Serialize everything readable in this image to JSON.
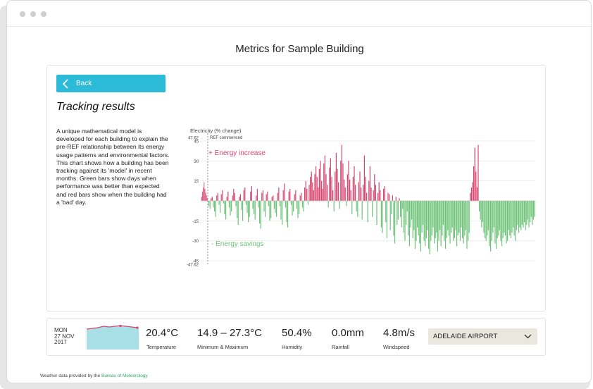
{
  "page_title": "Metrics for Sample Building",
  "back_label": "Back",
  "section_title": "Tracking results",
  "description": "A unique mathematical model is developed for each building to explain the pre-REF relationship between its energy usage patterns and environmental factors. This chart shows how a building has been tracking against its 'model' in recent months. Green bars show days when performance was better than expected and red bars show when the building had a 'bad' day.",
  "colors": {
    "increase": "#d9456f",
    "savings": "#6dc478",
    "accent": "#2bbbd8"
  },
  "chart_data": {
    "type": "bar",
    "ylabel": "Electricity (% change)",
    "ylim": [
      -47.62,
      47.62
    ],
    "yticks": [
      "47.62",
      "45",
      "30",
      "15",
      "-15",
      "-30",
      "-45",
      "-47.62"
    ],
    "ytick_values": [
      47.62,
      45,
      30,
      15,
      -15,
      -30,
      -45,
      -47.62
    ],
    "annotations": {
      "ref_commenced": "REF commenced",
      "increase_label": "+ Energy increase",
      "savings_label": "- Energy savings"
    },
    "pre_ref_values": [
      3,
      7,
      10,
      14,
      9,
      6,
      4,
      2
    ],
    "values": [
      -4,
      -6,
      2,
      3,
      -5,
      -8,
      -12,
      4,
      6,
      -3,
      -9,
      5,
      8,
      -2,
      -10,
      -14,
      3,
      7,
      -5,
      -11,
      -8,
      4,
      9,
      6,
      -4,
      -13,
      -18,
      3,
      5,
      -7,
      -15,
      8,
      10,
      -3,
      -9,
      -16,
      -12,
      7,
      11,
      -6,
      -10,
      -14,
      4,
      9,
      -5,
      -17,
      -21,
      6,
      8,
      -8,
      -12,
      5,
      7,
      -4,
      -15,
      -13,
      3,
      4,
      -6,
      -9,
      -12,
      6,
      10,
      -4,
      -14,
      -18,
      8,
      13,
      -5,
      -16,
      -20,
      7,
      9,
      -3,
      -11,
      -8,
      5,
      8,
      -6,
      -13,
      -10,
      4,
      6,
      -5,
      -8,
      10,
      15,
      9,
      -3,
      12,
      18,
      22,
      14,
      8,
      20,
      26,
      18,
      10,
      24,
      30,
      15,
      9,
      28,
      34,
      20,
      12,
      -5,
      25,
      32,
      18,
      8,
      -8,
      22,
      36,
      24,
      14,
      -6,
      30,
      42,
      28,
      16,
      10,
      -4,
      20,
      30,
      16,
      8,
      -10,
      18,
      26,
      12,
      -8,
      -12,
      14,
      22,
      10,
      -14,
      12,
      34,
      18,
      6,
      -16,
      15,
      26,
      10,
      -12,
      8,
      20,
      12,
      -18,
      6,
      14,
      8,
      -20,
      -24,
      9,
      11,
      -16,
      -28,
      6,
      5,
      -22,
      -10,
      4,
      -26,
      -32,
      3,
      -18,
      -14,
      2,
      -12,
      -20,
      -6,
      -24,
      -30,
      -18,
      -8,
      -26,
      -34,
      -20,
      -14,
      -28,
      -22,
      -36,
      -30,
      -20,
      -26,
      -32,
      -38,
      -24,
      -18,
      -30,
      -34,
      -28,
      -22,
      -36,
      -40,
      -30,
      -26,
      -20,
      -32,
      -28,
      -24,
      -38,
      -30,
      -22,
      -34,
      -26,
      -18,
      -30,
      -36,
      -28,
      -22,
      -26,
      -32,
      -24,
      -20,
      -30,
      -28,
      -22,
      -34,
      -26,
      -24,
      -30,
      -20,
      -28,
      -32,
      -26,
      -22,
      -36,
      -30,
      -24,
      6,
      10,
      14,
      26,
      40,
      22,
      10,
      42,
      -8,
      -14,
      -20,
      -16,
      -24,
      -28,
      -30,
      -26,
      -22,
      -34,
      -38,
      -30,
      -24,
      -20,
      -32,
      -36,
      -28,
      -26,
      -22,
      -30,
      -34,
      -28,
      -24,
      -26,
      -32,
      -30,
      -22,
      -26,
      -28,
      -24,
      -20,
      -26,
      -30,
      -22,
      -18,
      -24,
      -20,
      -22,
      -18,
      -20,
      -16,
      -22,
      -18,
      -14,
      -20,
      -16,
      -12,
      -18,
      -14,
      -12
    ]
  },
  "weather": {
    "day": "MON",
    "date": "27 NOV",
    "year": "2017",
    "temperature": "20.4°C",
    "temperature_label": "Temperature",
    "minmax": "14.9 – 27.3°C",
    "minmax_label": "Minimum & Maximum",
    "humidity": "50.4%",
    "humidity_label": "Humidity",
    "rainfall": "0.0mm",
    "rainfall_label": "Rainfall",
    "windspeed": "4.8m/s",
    "windspeed_label": "Windspeed",
    "station": "ADELAIDE AIRPORT"
  },
  "footer": {
    "text": "Weather data provided by the",
    "link": "Bureau of Meteorology"
  }
}
